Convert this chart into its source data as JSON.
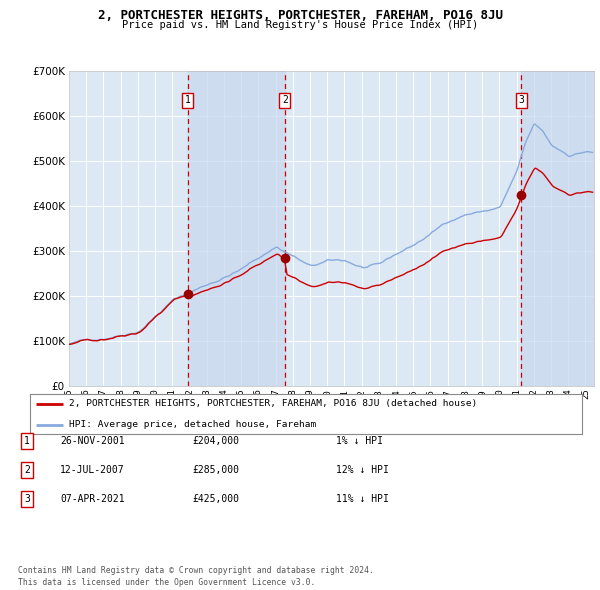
{
  "title": "2, PORTCHESTER HEIGHTS, PORTCHESTER, FAREHAM, PO16 8JU",
  "subtitle": "Price paid vs. HM Land Registry's House Price Index (HPI)",
  "background_color": "#ffffff",
  "plot_bg_color": "#dde8f5",
  "grid_color": "#ffffff",
  "ylim": [
    0,
    700000
  ],
  "yticks": [
    0,
    100000,
    200000,
    300000,
    400000,
    500000,
    600000,
    700000
  ],
  "ytick_labels": [
    "£0",
    "£100K",
    "£200K",
    "£300K",
    "£400K",
    "£500K",
    "£600K",
    "£700K"
  ],
  "xlim_start": 1995.0,
  "xlim_end": 2025.5,
  "sale_dates": [
    2001.9,
    2007.54,
    2021.27
  ],
  "sale_prices": [
    204000,
    285000,
    425000
  ],
  "sale_labels": [
    "1",
    "2",
    "3"
  ],
  "sale_info": [
    {
      "num": "1",
      "date": "26-NOV-2001",
      "price": "£204,000",
      "hpi": "1% ↓ HPI"
    },
    {
      "num": "2",
      "date": "12-JUL-2007",
      "price": "£285,000",
      "hpi": "12% ↓ HPI"
    },
    {
      "num": "3",
      "date": "07-APR-2021",
      "price": "£425,000",
      "hpi": "11% ↓ HPI"
    }
  ],
  "legend_property": "2, PORTCHESTER HEIGHTS, PORTCHESTER, FAREHAM, PO16 8JU (detached house)",
  "legend_hpi": "HPI: Average price, detached house, Fareham",
  "footer": "Contains HM Land Registry data © Crown copyright and database right 2024.\nThis data is licensed under the Open Government Licence v3.0.",
  "property_line_color": "#cc0000",
  "hpi_line_color": "#88aadd",
  "sale_marker_color": "#990000",
  "dashed_line_color": "#cc0000",
  "marker_box_color": "#cc0000",
  "shade_color": "#c8d8ee"
}
